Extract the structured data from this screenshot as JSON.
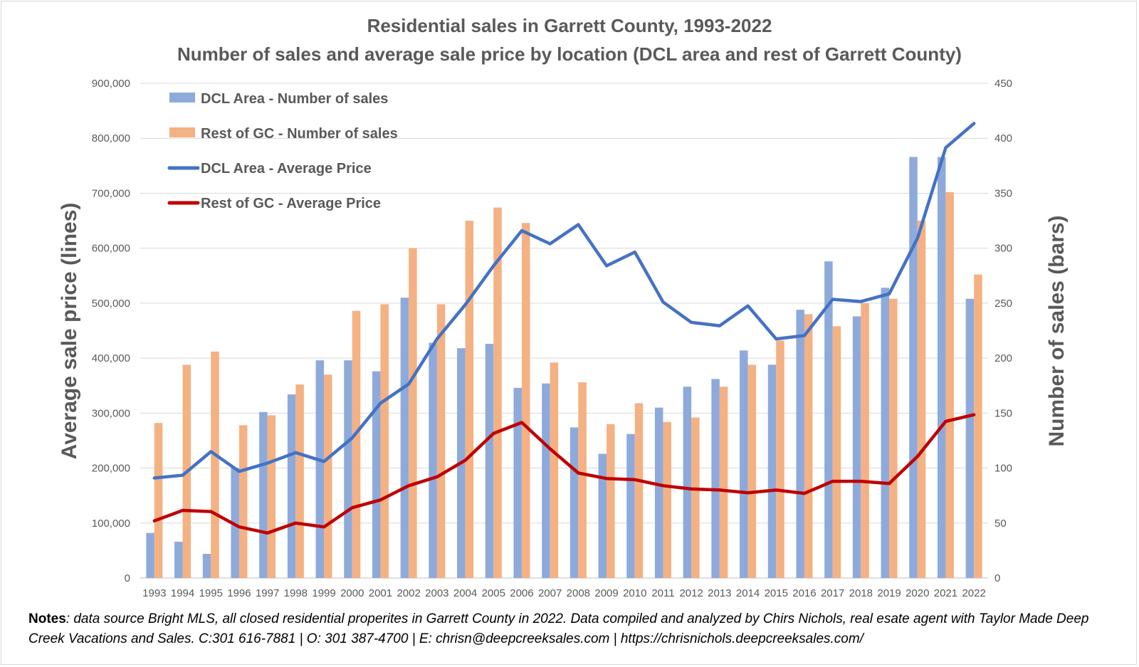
{
  "chart_data": {
    "type": "bar+line",
    "title": "Residential sales in Garrett County, 1993-2022",
    "subtitle": "Number of sales and average sale price by location (DCL area and rest of Garrett County)",
    "categories": [
      "1993",
      "1994",
      "1995",
      "1996",
      "1997",
      "1998",
      "1999",
      "2000",
      "2001",
      "2002",
      "2003",
      "2004",
      "2005",
      "2006",
      "2007",
      "2008",
      "2009",
      "2010",
      "2011",
      "2012",
      "2013",
      "2014",
      "2015",
      "2016",
      "2017",
      "2018",
      "2019",
      "2020",
      "2021",
      "2022"
    ],
    "y_left": {
      "label": "Average sale price (lines)",
      "range": [
        0,
        900000
      ],
      "ticks": [
        "0",
        "100,000",
        "200,000",
        "300,000",
        "400,000",
        "500,000",
        "600,000",
        "700,000",
        "800,000",
        "900,000"
      ]
    },
    "y_right": {
      "label": "Number of sales (bars)",
      "range": [
        0,
        450
      ],
      "ticks": [
        "0",
        "50",
        "100",
        "150",
        "200",
        "250",
        "300",
        "350",
        "400",
        "450"
      ]
    },
    "bar_series": [
      {
        "name": "DCL Area - Number of sales",
        "color": "#8eaadb",
        "values": [
          41,
          33,
          22,
          100,
          151,
          167,
          198,
          198,
          188,
          255,
          214,
          209,
          213,
          173,
          177,
          137,
          113,
          131,
          155,
          174,
          181,
          207,
          194,
          244,
          288,
          238,
          264,
          383,
          383,
          254
        ]
      },
      {
        "name": "Rest of GC - Number of sales",
        "color": "#f4b183",
        "values": [
          141,
          194,
          206,
          139,
          148,
          176,
          185,
          243,
          249,
          300,
          249,
          325,
          337,
          323,
          196,
          178,
          140,
          159,
          142,
          146,
          174,
          194,
          216,
          240,
          229,
          250,
          254,
          325,
          351,
          276
        ]
      }
    ],
    "line_series": [
      {
        "name": "DCL Area - Average Price",
        "color": "#4472c4",
        "values": [
          182000,
          187000,
          230000,
          194000,
          209000,
          228000,
          212000,
          255000,
          318000,
          353000,
          435000,
          497000,
          568000,
          632000,
          608000,
          643000,
          568000,
          593000,
          502000,
          465000,
          459000,
          495000,
          435000,
          441000,
          507000,
          503000,
          517000,
          618000,
          783000,
          827000
        ]
      },
      {
        "name": "Rest of GC - Average Price",
        "color": "#c00000",
        "values": [
          104000,
          123000,
          121000,
          93000,
          82000,
          100000,
          93000,
          128000,
          142000,
          168000,
          184000,
          214000,
          263000,
          283000,
          235000,
          191000,
          181000,
          179000,
          168000,
          162000,
          160000,
          155000,
          160000,
          154000,
          176000,
          176000,
          172000,
          221000,
          285000,
          297000
        ]
      }
    ],
    "legend_position": "top-left",
    "grid": true
  },
  "notes": {
    "label": "Notes",
    "text": ": data source Bright MLS, all closed residential properites in Garrett County in 2022.  Data compiled and analyzed by Chirs Nichols, real esate agent with Taylor Made Deep Creek Vacations and Sales. C:301 616-7881  | O: 301 387-4700  | E: chrisn@deepcreeksales.com  | https://chrisnichols.deepcreeksales.com/"
  }
}
